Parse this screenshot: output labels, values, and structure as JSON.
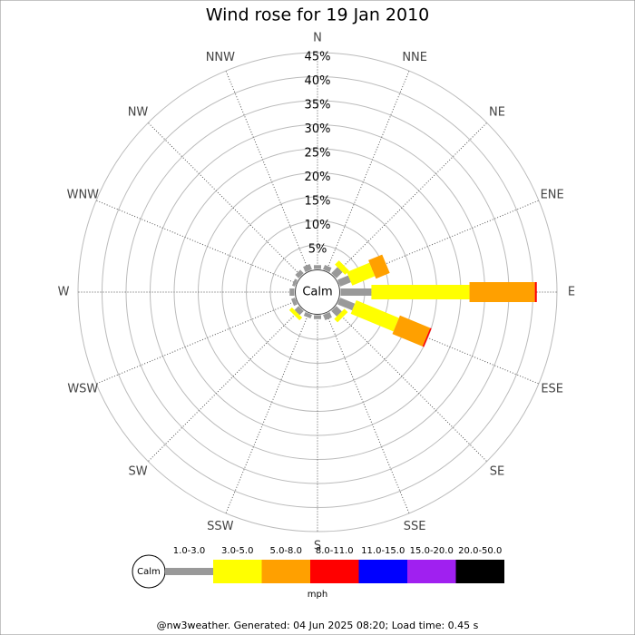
{
  "chart_data": {
    "type": "windrose",
    "title": "Wind rose for 19 Jan 2010",
    "categories": [
      "N",
      "NNE",
      "NE",
      "ENE",
      "E",
      "ESE",
      "SE",
      "SSE",
      "S",
      "SSW",
      "SW",
      "WSW",
      "W",
      "WNW",
      "NW",
      "NNW"
    ],
    "calm_label": "Calm",
    "unit": "mph",
    "rlim": [
      0,
      45
    ],
    "rticks": [
      {
        "value": 5,
        "label": "5%"
      },
      {
        "value": 10,
        "label": "10%"
      },
      {
        "value": 15,
        "label": "15%"
      },
      {
        "value": 20,
        "label": "20%"
      },
      {
        "value": 25,
        "label": "25%"
      },
      {
        "value": 30,
        "label": "30%"
      },
      {
        "value": 35,
        "label": "35%"
      },
      {
        "value": 40,
        "label": "40%"
      },
      {
        "value": 45,
        "label": "45%"
      }
    ],
    "series": [
      {
        "name": "1.0-3.0",
        "color": "#999999",
        "values": [
          0.8,
          1.0,
          1.8,
          2.4,
          6.4,
          3.3,
          1.6,
          1.2,
          0.8,
          0.8,
          1.2,
          0.8,
          1.0,
          0.6,
          1.0,
          1.2
        ]
      },
      {
        "name": "3.0-5.0",
        "color": "#ffff00",
        "values": [
          0,
          0,
          1.2,
          5.1,
          20.4,
          9.6,
          1.0,
          0,
          0,
          0,
          0.8,
          0,
          0,
          0,
          0,
          0
        ]
      },
      {
        "name": "5.0-8.0",
        "color": "#ffa000",
        "values": [
          0,
          0,
          0,
          3.1,
          13.6,
          6.8,
          0,
          0,
          0,
          0,
          0,
          0,
          0,
          0,
          0,
          0
        ]
      },
      {
        "name": "8.0-11.0",
        "color": "#ff0000",
        "values": [
          0,
          0,
          0,
          0,
          0.4,
          0.3,
          0,
          0,
          0,
          0,
          0,
          0,
          0,
          0,
          0,
          0
        ]
      },
      {
        "name": "11.0-15.0",
        "color": "#0000ff",
        "values": [
          0,
          0,
          0,
          0,
          0,
          0,
          0,
          0,
          0,
          0,
          0,
          0,
          0,
          0,
          0,
          0
        ]
      },
      {
        "name": "15.0-20.0",
        "color": "#a020f0",
        "values": [
          0,
          0,
          0,
          0,
          0,
          0,
          0,
          0,
          0,
          0,
          0,
          0,
          0,
          0,
          0,
          0
        ]
      },
      {
        "name": "20.0-50.0",
        "color": "#000000",
        "values": [
          0,
          0,
          0,
          0,
          0,
          0,
          0,
          0,
          0,
          0,
          0,
          0,
          0,
          0,
          0,
          0
        ]
      }
    ]
  },
  "footer": "@nw3weather. Generated: 04 Jun 2025 08:20; Load time: 0.45 s"
}
